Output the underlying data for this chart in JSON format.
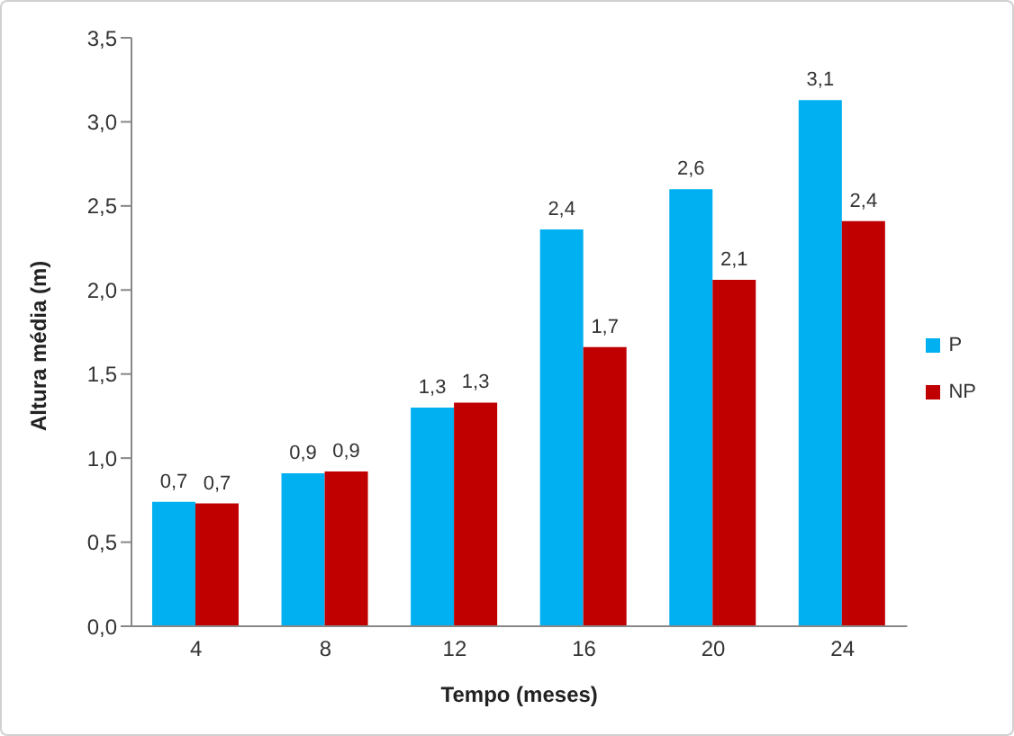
{
  "chart_data": {
    "type": "bar",
    "xlabel": "Tempo (meses)",
    "ylabel": "Altura média (m)",
    "categories": [
      "4",
      "8",
      "12",
      "16",
      "20",
      "24"
    ],
    "series": [
      {
        "name": "P",
        "color": "#00b0f0",
        "values": [
          0.74,
          0.91,
          1.3,
          2.36,
          2.6,
          3.13
        ],
        "value_labels": [
          "0,7",
          "0,9",
          "1,3",
          "2,4",
          "2,6",
          "3,1"
        ]
      },
      {
        "name": "NP",
        "color": "#c00000",
        "values": [
          0.73,
          0.92,
          1.33,
          1.66,
          2.06,
          2.41
        ],
        "value_labels": [
          "0,7",
          "0,9",
          "1,3",
          "1,7",
          "2,1",
          "2,4"
        ]
      }
    ],
    "ylim": [
      0,
      3.5
    ],
    "yticks": [
      {
        "value": 0,
        "label": "0,0"
      },
      {
        "value": 0.5,
        "label": "0,5"
      },
      {
        "value": 1,
        "label": "1,0"
      },
      {
        "value": 1.5,
        "label": "1,5"
      },
      {
        "value": 2,
        "label": "2,0"
      },
      {
        "value": 2.5,
        "label": "2,5"
      },
      {
        "value": 3,
        "label": "3,0"
      },
      {
        "value": 3.5,
        "label": "3,5"
      }
    ],
    "grid": false,
    "legend": "right"
  }
}
